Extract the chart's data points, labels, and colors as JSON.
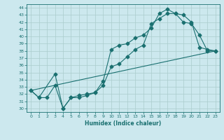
{
  "xlabel": "Humidex (Indice chaleur)",
  "bg_color": "#cce8ee",
  "line_color": "#1a7070",
  "grid_color": "#aacccc",
  "xlim": [
    -0.5,
    23.5
  ],
  "ylim": [
    29.5,
    44.5
  ],
  "xticks": [
    0,
    1,
    2,
    3,
    4,
    5,
    6,
    7,
    8,
    9,
    10,
    11,
    12,
    13,
    14,
    15,
    16,
    17,
    18,
    19,
    20,
    21,
    22,
    23
  ],
  "yticks": [
    30,
    31,
    32,
    33,
    34,
    35,
    36,
    37,
    38,
    39,
    40,
    41,
    42,
    43,
    44
  ],
  "line1_x": [
    0,
    1,
    3,
    4,
    5,
    6,
    7,
    8,
    9,
    10,
    11,
    12,
    13,
    14,
    15,
    16,
    17,
    18,
    19,
    20,
    21,
    22,
    23
  ],
  "line1_y": [
    32.5,
    31.5,
    34.8,
    30.0,
    31.5,
    31.5,
    31.8,
    32.2,
    33.8,
    38.2,
    38.8,
    39.0,
    39.8,
    40.2,
    41.2,
    43.2,
    43.8,
    43.2,
    42.0,
    41.8,
    40.2,
    38.0,
    38.0
  ],
  "line2_x": [
    0,
    1,
    2,
    3,
    4,
    5,
    6,
    7,
    8,
    9,
    10,
    11,
    12,
    13,
    14,
    15,
    16,
    17,
    18,
    19,
    20,
    21,
    22,
    23
  ],
  "line2_y": [
    32.5,
    31.5,
    31.5,
    33.2,
    30.0,
    31.5,
    31.8,
    32.0,
    32.2,
    33.2,
    35.8,
    36.2,
    37.2,
    38.2,
    38.8,
    41.8,
    42.5,
    43.2,
    43.2,
    43.0,
    42.0,
    38.5,
    38.2,
    38.0
  ],
  "line3_x": [
    0,
    23
  ],
  "line3_y": [
    32.5,
    38.0
  ]
}
